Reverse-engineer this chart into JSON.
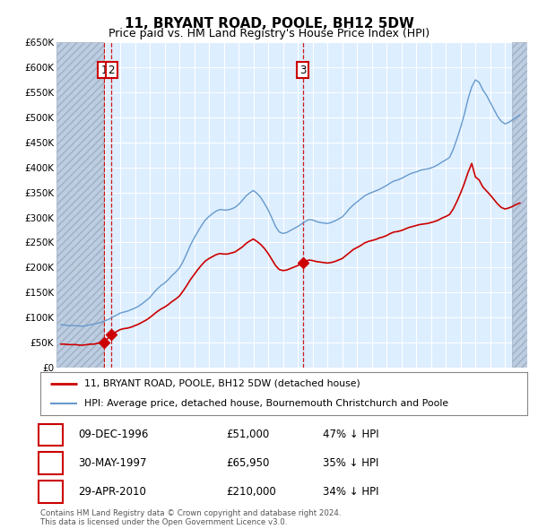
{
  "title": "11, BRYANT ROAD, POOLE, BH12 5DW",
  "subtitle": "Price paid vs. HM Land Registry's House Price Index (HPI)",
  "ylim": [
    0,
    650000
  ],
  "yticks": [
    0,
    50000,
    100000,
    150000,
    200000,
    250000,
    300000,
    350000,
    400000,
    450000,
    500000,
    550000,
    600000,
    650000
  ],
  "ytick_labels": [
    "£0",
    "£50K",
    "£100K",
    "£150K",
    "£200K",
    "£250K",
    "£300K",
    "£350K",
    "£400K",
    "£450K",
    "£500K",
    "£550K",
    "£600K",
    "£650K"
  ],
  "xlim_start": 1993.7,
  "xlim_end": 2025.5,
  "background_color": "#ffffff",
  "plot_bg_color": "#ddeeff",
  "grid_color": "#ffffff",
  "sales": [
    {
      "year": 1996.92,
      "price": 51000,
      "label": "1"
    },
    {
      "year": 1997.41,
      "price": 65950,
      "label": "2"
    },
    {
      "year": 2010.33,
      "price": 210000,
      "label": "3"
    }
  ],
  "sale_color": "#cc0000",
  "hpi_color": "#6699cc",
  "hpi_data_x": [
    1994.0,
    1994.25,
    1994.5,
    1994.75,
    1995.0,
    1995.25,
    1995.5,
    1995.75,
    1996.0,
    1996.25,
    1996.5,
    1996.75,
    1997.0,
    1997.25,
    1997.5,
    1997.75,
    1998.0,
    1998.25,
    1998.5,
    1998.75,
    1999.0,
    1999.25,
    1999.5,
    1999.75,
    2000.0,
    2000.25,
    2000.5,
    2000.75,
    2001.0,
    2001.25,
    2001.5,
    2001.75,
    2002.0,
    2002.25,
    2002.5,
    2002.75,
    2003.0,
    2003.25,
    2003.5,
    2003.75,
    2004.0,
    2004.25,
    2004.5,
    2004.75,
    2005.0,
    2005.25,
    2005.5,
    2005.75,
    2006.0,
    2006.25,
    2006.5,
    2006.75,
    2007.0,
    2007.25,
    2007.5,
    2007.75,
    2008.0,
    2008.25,
    2008.5,
    2008.75,
    2009.0,
    2009.25,
    2009.5,
    2009.75,
    2010.0,
    2010.25,
    2010.5,
    2010.75,
    2011.0,
    2011.25,
    2011.5,
    2011.75,
    2012.0,
    2012.25,
    2012.5,
    2012.75,
    2013.0,
    2013.25,
    2013.5,
    2013.75,
    2014.0,
    2014.25,
    2014.5,
    2014.75,
    2015.0,
    2015.25,
    2015.5,
    2015.75,
    2016.0,
    2016.25,
    2016.5,
    2016.75,
    2017.0,
    2017.25,
    2017.5,
    2017.75,
    2018.0,
    2018.25,
    2018.5,
    2018.75,
    2019.0,
    2019.25,
    2019.5,
    2019.75,
    2020.0,
    2020.25,
    2020.5,
    2020.75,
    2021.0,
    2021.25,
    2021.5,
    2021.75,
    2022.0,
    2022.25,
    2022.5,
    2022.75,
    2023.0,
    2023.25,
    2023.5,
    2023.75,
    2024.0,
    2024.25,
    2024.5,
    2024.75,
    2025.0
  ],
  "hpi_data_y": [
    86000,
    85000,
    84000,
    84000,
    84000,
    83000,
    83000,
    84000,
    86000,
    87000,
    89000,
    91000,
    94000,
    97000,
    101000,
    105000,
    109000,
    111000,
    113000,
    116000,
    119000,
    123000,
    128000,
    134000,
    140000,
    149000,
    157000,
    164000,
    169000,
    176000,
    184000,
    191000,
    199000,
    212000,
    228000,
    245000,
    259000,
    272000,
    284000,
    295000,
    302000,
    308000,
    313000,
    316000,
    315000,
    315000,
    317000,
    320000,
    326000,
    334000,
    343000,
    349000,
    354000,
    348000,
    340000,
    328000,
    315000,
    299000,
    282000,
    271000,
    268000,
    270000,
    274000,
    278000,
    282000,
    287000,
    292000,
    296000,
    295000,
    292000,
    290000,
    289000,
    288000,
    290000,
    293000,
    297000,
    301000,
    309000,
    318000,
    325000,
    331000,
    337000,
    343000,
    347000,
    350000,
    353000,
    356000,
    360000,
    364000,
    369000,
    373000,
    375000,
    378000,
    382000,
    386000,
    389000,
    391000,
    394000,
    396000,
    397000,
    399000,
    402000,
    406000,
    411000,
    415000,
    420000,
    436000,
    457000,
    480000,
    506000,
    537000,
    561000,
    575000,
    570000,
    555000,
    544000,
    530000,
    516000,
    502000,
    492000,
    487000,
    490000,
    495000,
    500000,
    505000
  ],
  "property_line_x": [
    1994.0,
    1994.25,
    1994.5,
    1994.75,
    1995.0,
    1995.25,
    1995.5,
    1995.75,
    1996.0,
    1996.25,
    1996.5,
    1996.75,
    1996.92,
    1997.41,
    1997.5,
    1997.75,
    1998.0,
    1998.25,
    1998.5,
    1998.75,
    1999.0,
    1999.25,
    1999.5,
    1999.75,
    2000.0,
    2000.25,
    2000.5,
    2000.75,
    2001.0,
    2001.25,
    2001.5,
    2001.75,
    2002.0,
    2002.25,
    2002.5,
    2002.75,
    2003.0,
    2003.25,
    2003.5,
    2003.75,
    2004.0,
    2004.25,
    2004.5,
    2004.75,
    2005.0,
    2005.25,
    2005.5,
    2005.75,
    2006.0,
    2006.25,
    2006.5,
    2006.75,
    2007.0,
    2007.25,
    2007.5,
    2007.75,
    2008.0,
    2008.25,
    2008.5,
    2008.75,
    2009.0,
    2009.25,
    2009.5,
    2009.75,
    2010.0,
    2010.25,
    2010.33,
    2010.5,
    2010.75,
    2011.0,
    2011.25,
    2011.5,
    2011.75,
    2012.0,
    2012.25,
    2012.5,
    2012.75,
    2013.0,
    2013.25,
    2013.5,
    2013.75,
    2014.0,
    2014.25,
    2014.5,
    2014.75,
    2015.0,
    2015.25,
    2015.5,
    2015.75,
    2016.0,
    2016.25,
    2016.5,
    2016.75,
    2017.0,
    2017.25,
    2017.5,
    2017.75,
    2018.0,
    2018.25,
    2018.5,
    2018.75,
    2019.0,
    2019.25,
    2019.5,
    2019.75,
    2020.0,
    2020.25,
    2020.5,
    2020.75,
    2021.0,
    2021.25,
    2021.5,
    2021.75,
    2022.0,
    2022.25,
    2022.5,
    2022.75,
    2023.0,
    2023.25,
    2023.5,
    2023.75,
    2024.0,
    2024.25,
    2024.5,
    2024.75,
    2025.0
  ],
  "property_line_y": [
    47000,
    47000,
    46000,
    46000,
    46000,
    45000,
    45000,
    46000,
    47000,
    47000,
    49000,
    50000,
    51000,
    65950,
    68000,
    72000,
    76000,
    78000,
    79000,
    81000,
    84000,
    87000,
    91000,
    95000,
    100000,
    106000,
    112000,
    117000,
    121000,
    126000,
    132000,
    137000,
    143000,
    153000,
    164000,
    176000,
    186000,
    196000,
    205000,
    213000,
    218000,
    222000,
    226000,
    228000,
    227000,
    227000,
    229000,
    231000,
    236000,
    241000,
    248000,
    253000,
    257000,
    252000,
    246000,
    238000,
    228000,
    216000,
    204000,
    196000,
    194000,
    195000,
    198000,
    201000,
    204000,
    208000,
    210000,
    212000,
    215000,
    214000,
    212000,
    211000,
    210000,
    209000,
    210000,
    212000,
    215000,
    218000,
    224000,
    230000,
    236000,
    240000,
    244000,
    249000,
    252000,
    254000,
    256000,
    259000,
    261000,
    264000,
    268000,
    271000,
    272000,
    274000,
    277000,
    280000,
    282000,
    284000,
    286000,
    287000,
    288000,
    290000,
    292000,
    295000,
    299000,
    302000,
    306000,
    317000,
    332000,
    349000,
    368000,
    390000,
    408000,
    381000,
    375000,
    361000,
    353000,
    345000,
    336000,
    327000,
    320000,
    317000,
    319000,
    322000,
    326000,
    329000
  ],
  "legend_label_red": "11, BRYANT ROAD, POOLE, BH12 5DW (detached house)",
  "legend_label_blue": "HPI: Average price, detached house, Bournemouth Christchurch and Poole",
  "table_rows": [
    {
      "num": "1",
      "date": "09-DEC-1996",
      "price": "£51,000",
      "note": "47% ↓ HPI"
    },
    {
      "num": "2",
      "date": "30-MAY-1997",
      "price": "£65,950",
      "note": "35% ↓ HPI"
    },
    {
      "num": "3",
      "date": "29-APR-2010",
      "price": "£210,000",
      "note": "34% ↓ HPI"
    }
  ],
  "footnote": "Contains HM Land Registry data © Crown copyright and database right 2024.\nThis data is licensed under the Open Government Licence v3.0.",
  "hatch_end_year": 1996.92,
  "hatch_start_year2": 2024.5
}
